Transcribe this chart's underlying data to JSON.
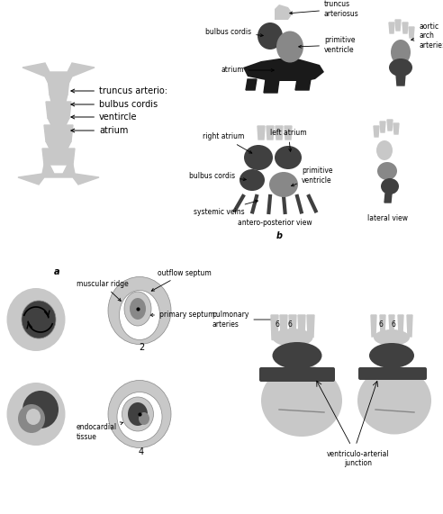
{
  "bg_color": "#ffffff",
  "light_gray": "#c8c8c8",
  "mid_gray": "#888888",
  "dark_gray": "#404040",
  "very_dark": "#1a1a1a",
  "black": "#000000",
  "label_a": "a",
  "label_b": "b",
  "labels_left": [
    "truncus arterio:",
    "bulbus cordis",
    "ventircle",
    "atrium"
  ],
  "labels_top_right": [
    "truncus\narteriosus",
    "bulbus cordis",
    "primitive\nventricle",
    "atrium"
  ],
  "labels_mid": [
    "right atrium",
    "left atrium",
    "bulbus cordis",
    "primitive\nventricle",
    "systemic veins",
    "antero-posterior view",
    "lateral view",
    "aortic\narch\narterie:"
  ],
  "labels_bottom_left": [
    "muscular ridge",
    "outflow septum",
    "primary septum",
    "endocardial\ntissue"
  ],
  "labels_bottom_right": [
    "pulmonary\narteries",
    "ventriculo-arterial\njunction"
  ],
  "fontsize_main": 7,
  "fontsize_label": 6.5
}
